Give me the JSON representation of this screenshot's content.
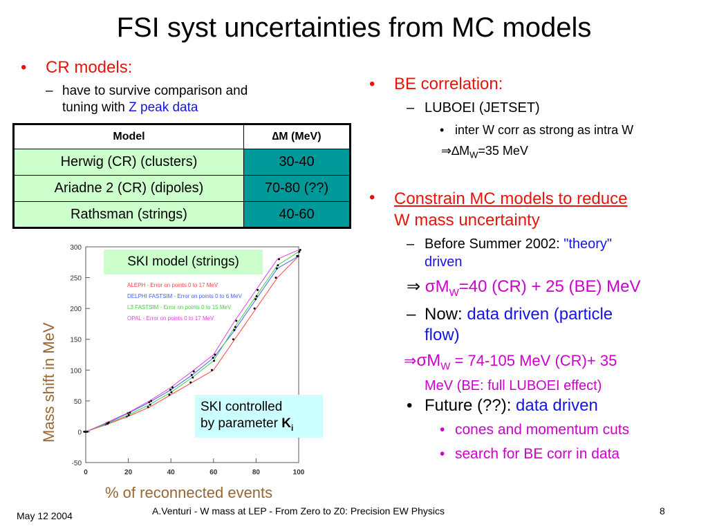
{
  "title": "FSI syst uncertainties from MC models",
  "left": {
    "cr_head": "CR models:",
    "cr_sub_line1": "have to survive comparison and",
    "cr_sub_line2a": "tuning with ",
    "cr_sub_line2b": "Z peak data",
    "table": {
      "headers": [
        "Model",
        "∆M (MeV)"
      ],
      "rows": [
        [
          "Herwig (CR) (clusters)",
          "30-40"
        ],
        [
          "Ariadne 2 (CR) (dipoles)",
          "70-80 (??)"
        ],
        [
          "Rathsman (strings)",
          "40-60"
        ]
      ]
    },
    "ski_label": "SKI model (strings)",
    "ski_ctrl_line1": "SKI controlled",
    "ski_ctrl_line2": "by  parameter ",
    "ski_ctrl_k": "K",
    "ski_ctrl_sub": "i",
    "ylabel": "Mass shift in MeV",
    "xlabel": "% of reconnected events"
  },
  "chart_data": {
    "type": "line",
    "x": [
      0,
      10,
      20,
      30,
      40,
      50,
      60,
      70,
      80,
      90,
      100
    ],
    "xticks": [
      "0",
      "20",
      "40",
      "60",
      "80",
      "100"
    ],
    "yticks": [
      "-50",
      "0",
      "50",
      "100",
      "150",
      "200",
      "250",
      "300"
    ],
    "xlim": [
      0,
      100
    ],
    "ylim": [
      -50,
      300
    ],
    "legend_position": "top-left",
    "series": [
      {
        "name": "ALEPH - Error on points 0 to 17 MeV",
        "color": "#ff4040",
        "values": [
          0,
          12,
          25,
          40,
          60,
          80,
          100,
          150,
          200,
          250,
          285
        ]
      },
      {
        "name": "DELPHI FASTSIM - Error on points 0 to 6 MeV",
        "color": "#4060ff",
        "values": [
          0,
          14,
          30,
          48,
          68,
          92,
          120,
          165,
          215,
          265,
          285
        ]
      },
      {
        "name": "L3 FASTSIM - Error on points 0 to 15 MeV",
        "color": "#40d040",
        "values": [
          0,
          13,
          27,
          44,
          64,
          88,
          115,
          170,
          220,
          270,
          292
        ]
      },
      {
        "name": "OPAL - Error on points 0 to 17 MeV",
        "color": "#e040e0",
        "values": [
          0,
          15,
          31,
          50,
          72,
          98,
          125,
          180,
          230,
          280,
          295
        ]
      }
    ]
  },
  "right": {
    "be_head": "BE correlation:",
    "luboei": "LUBOEI (JETSET)",
    "interw": "inter W corr as strong as intra W",
    "dmw_pre": "⇒∆M",
    "dmw_sub": "W",
    "dmw_post": "=35 MeV",
    "con_line1": "Constrain MC models to reduce",
    "con_line2": "W mass uncertainty",
    "before_a": "Before Summer 2002: ",
    "before_b": "\"theory\"",
    "before_c": "driven",
    "sig1_arrow": "⇒ ",
    "sig1_a": "σM",
    "sig1_sub": "W",
    "sig1_b": "=40 (CR) + 25 (BE) MeV",
    "now_a": "Now: ",
    "now_b": "data driven (particle",
    "now_c": "flow)",
    "sig2_arrow": "⇒",
    "sig2_a": "σM",
    "sig2_sub": "W",
    "sig2_b": " = 74-105 MeV (CR)+ 35",
    "sig2_c": "MeV (BE: full LUBOEI effect)",
    "future_a": "Future (??): ",
    "future_b": "data driven",
    "cones": "cones and momentum cuts",
    "search": "search for BE corr in data"
  },
  "footer": {
    "date": "May 12 2004",
    "center": "A.Venturi - W mass at LEP - From Zero to Z0: Precision EW Physics",
    "page": "8"
  }
}
